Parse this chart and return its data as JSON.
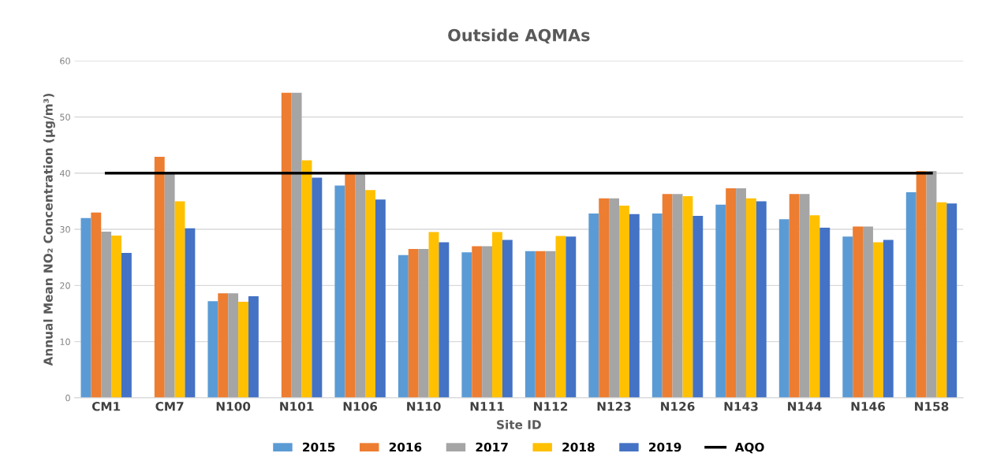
{
  "chart_data": {
    "type": "bar",
    "title": "Outside AQMAs",
    "xlabel": "Site ID",
    "ylabel": "Annual Mean NO₂ Concentration (µg/m³)",
    "categories": [
      "CM1",
      "CM7",
      "N100",
      "N101",
      "N106",
      "N110",
      "N111",
      "N112",
      "N123",
      "N126",
      "N143",
      "N144",
      "N146",
      "N158"
    ],
    "series": [
      {
        "name": "2015",
        "color": "#5b9bd5",
        "values": [
          32.0,
          null,
          17.2,
          null,
          37.8,
          25.4,
          25.9,
          26.1,
          32.8,
          32.8,
          34.4,
          31.8,
          28.7,
          36.6
        ]
      },
      {
        "name": "2016",
        "color": "#ed7d31",
        "values": [
          33.0,
          42.9,
          18.6,
          54.3,
          40.0,
          26.5,
          27.0,
          26.1,
          35.5,
          36.3,
          37.3,
          36.3,
          30.5,
          40.4
        ]
      },
      {
        "name": "2017",
        "color": "#a5a5a5",
        "values": [
          29.6,
          40.0,
          18.6,
          54.3,
          40.0,
          26.5,
          27.0,
          26.1,
          35.5,
          36.3,
          37.3,
          36.3,
          30.5,
          40.4
        ]
      },
      {
        "name": "2018",
        "color": "#ffc000",
        "values": [
          28.9,
          35.0,
          17.1,
          42.3,
          37.0,
          29.5,
          29.5,
          28.8,
          34.2,
          35.9,
          35.5,
          32.5,
          27.7,
          34.8
        ]
      },
      {
        "name": "2019",
        "color": "#4472c4",
        "values": [
          25.8,
          30.2,
          18.1,
          39.2,
          35.3,
          27.7,
          28.1,
          28.7,
          32.7,
          32.4,
          35.0,
          30.3,
          28.1,
          34.6
        ]
      },
      {
        "name": "AQO",
        "type": "line",
        "color": "#000000",
        "values": [
          40,
          40,
          40,
          40,
          40,
          40,
          40,
          40,
          40,
          40,
          40,
          40,
          40,
          40
        ]
      }
    ],
    "ylim": [
      0,
      60
    ],
    "yticks": [
      0,
      10,
      20,
      30,
      40,
      50,
      60
    ],
    "grid": "y",
    "legend": "bottom"
  }
}
